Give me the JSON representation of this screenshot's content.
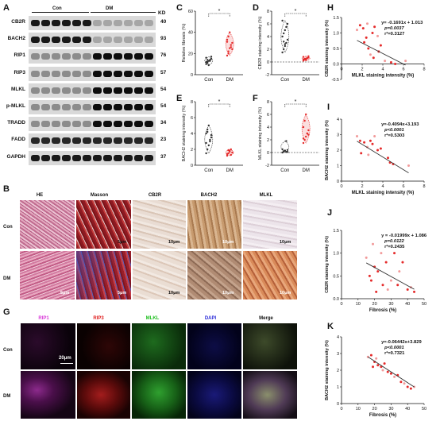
{
  "panels": {
    "A": "A",
    "B": "B",
    "C": "C",
    "D": "D",
    "E": "E",
    "F": "F",
    "G": "G",
    "H": "H",
    "I": "I",
    "J": "J",
    "K": "K"
  },
  "blot": {
    "group_con": "Con",
    "group_dm": "DM",
    "kd_header": "KD",
    "rows": [
      {
        "name": "CB2R",
        "kd": "40"
      },
      {
        "name": "BACH2",
        "kd": "93"
      },
      {
        "name": "RIP1",
        "kd": "76"
      },
      {
        "name": "RIP3",
        "kd": "57"
      },
      {
        "name": "MLKL",
        "kd": "54"
      },
      {
        "name": "p-MLKL",
        "kd": "54"
      },
      {
        "name": "TRADD",
        "kd": "34"
      },
      {
        "name": "FADD",
        "kd": "23"
      },
      {
        "name": "GAPDH",
        "kd": "37"
      }
    ]
  },
  "histology": {
    "columns": [
      "HE",
      "Masson",
      "CB2R",
      "BACH2",
      "MLKL"
    ],
    "rows": [
      "Con",
      "DM"
    ],
    "scalebars": [
      [
        "",
        "5μm",
        "10μm",
        "10μm",
        "10μm"
      ],
      [
        "5μm",
        "5μm",
        "10μm",
        "10μm",
        "10μm"
      ]
    ]
  },
  "fluorescence": {
    "columns": [
      "RIP1",
      "RIP3",
      "MLKL",
      "DAPI",
      "Merge"
    ],
    "column_colors": [
      "#d93bd9",
      "#e02020",
      "#22c022",
      "#2a2ad8",
      "#111111"
    ],
    "rows": [
      "Con",
      "DM"
    ],
    "scalebar": "20μm"
  },
  "violins": [
    {
      "id": "C",
      "ylabel": "Relative fibrosis (%)",
      "yticks": [
        "0",
        "20",
        "40",
        "60"
      ],
      "ylim": [
        0,
        60
      ],
      "star": "*",
      "categories": [
        "Con",
        "DM"
      ],
      "con": [
        10,
        12,
        13,
        14,
        15,
        16,
        11,
        9,
        13,
        17,
        12,
        14
      ],
      "dm": [
        18,
        22,
        25,
        28,
        30,
        33,
        36,
        40,
        26,
        24,
        31,
        20
      ]
    },
    {
      "id": "D",
      "ylabel": "CB2R staining intensity (%)",
      "yticks": [
        "-2",
        "0",
        "2",
        "4",
        "6",
        "8"
      ],
      "ylim": [
        -2,
        8
      ],
      "star": "*",
      "categories": [
        "Con",
        "DM"
      ],
      "con": [
        1.5,
        2,
        2.5,
        3,
        3.5,
        4,
        4.5,
        5,
        5.5,
        6,
        6.5,
        3.2,
        2.8
      ],
      "dm": [
        0.2,
        0.4,
        0.5,
        0.6,
        0.7,
        0.8,
        0.5,
        0.3,
        0.6,
        0.9,
        0.4
      ]
    },
    {
      "id": "E",
      "ylabel": "BACH2 staining intensity (%)",
      "yticks": [
        "0",
        "2",
        "4",
        "6",
        "8"
      ],
      "ylim": [
        0,
        8
      ],
      "star": "*",
      "categories": [
        "Con",
        "DM"
      ],
      "con": [
        1.5,
        2,
        2.5,
        3,
        3.5,
        4,
        4.5,
        5,
        3.2,
        3.8,
        2.8,
        4.2
      ],
      "dm": [
        1.2,
        1.5,
        1.8,
        2,
        1.6,
        1.4,
        1.9,
        1.7,
        1.3
      ]
    },
    {
      "id": "F",
      "ylabel": "MLKL staining intensity (%)",
      "yticks": [
        "-2",
        "0",
        "2",
        "4",
        "6",
        "8"
      ],
      "ylim": [
        -2,
        8
      ],
      "star": "*",
      "categories": [
        "Con",
        "DM"
      ],
      "con": [
        0,
        0.2,
        0.3,
        0.1,
        0.4,
        0.5,
        0.2,
        0.3,
        1.8,
        0.1
      ],
      "dm": [
        1.5,
        2,
        2.5,
        3,
        3.5,
        4,
        5,
        6,
        3,
        2.8,
        2.2
      ]
    }
  ],
  "scatters": [
    {
      "id": "H",
      "xlabel": "MLKL staining intensity (%)",
      "ylabel": "CB2R staining intensity (%)",
      "xticks": [
        "0",
        "2",
        "4",
        "6",
        "8"
      ],
      "yticks": [
        "-0.5",
        "0.0",
        "0.5",
        "1.0",
        "1.5"
      ],
      "xlim": [
        0,
        8
      ],
      "ylim": [
        -0.5,
        1.5
      ],
      "eq": "y= -0.1691x + 1.013",
      "p": "p=0.0037",
      "r2": "r²=0.3127",
      "points": [
        [
          1.5,
          1.1
        ],
        [
          1.8,
          1.25
        ],
        [
          2.1,
          1.15
        ],
        [
          2.5,
          1.3
        ],
        [
          3,
          1.0
        ],
        [
          3.2,
          1.2
        ],
        [
          3.5,
          0.9
        ],
        [
          2.2,
          0.7
        ],
        [
          2.6,
          0.5
        ],
        [
          2.8,
          0.3
        ],
        [
          3.1,
          0.2
        ],
        [
          3.6,
          0.4
        ],
        [
          4.2,
          0.1
        ],
        [
          4.8,
          0.05
        ],
        [
          5.2,
          0.0
        ],
        [
          6.2,
          0.1
        ],
        [
          2.4,
          0.85
        ],
        [
          3.8,
          0.6
        ]
      ],
      "line": [
        -0.1691,
        1.013
      ]
    },
    {
      "id": "I",
      "xlabel": "MLKL staining intensity (%)",
      "ylabel": "BACH2 staining intensity (%)",
      "xticks": [
        "0",
        "2",
        "4",
        "6",
        "8"
      ],
      "yticks": [
        "0",
        "1",
        "2",
        "3",
        "4"
      ],
      "xlim": [
        0,
        8
      ],
      "ylim": [
        0,
        4
      ],
      "eq": "y=-0.4094x+3.193",
      "p": "p<0.0001",
      "r2": "r²=0.5303",
      "points": [
        [
          1.5,
          2.9
        ],
        [
          1.8,
          2.6
        ],
        [
          2.2,
          2.5
        ],
        [
          2.5,
          2.2
        ],
        [
          2.8,
          2.6
        ],
        [
          3,
          2.4
        ],
        [
          3.2,
          2.9
        ],
        [
          3.5,
          2.0
        ],
        [
          1.9,
          1.8
        ],
        [
          2.6,
          1.7
        ],
        [
          4.5,
          1.5
        ],
        [
          4.7,
          1.2
        ],
        [
          6.5,
          1.0
        ],
        [
          5.0,
          1.1
        ],
        [
          3.8,
          2.1
        ]
      ],
      "line": [
        -0.4094,
        3.193
      ]
    },
    {
      "id": "J",
      "xlabel": "Fibrosis (%)",
      "ylabel": "CB2R staining intensity (%)",
      "xticks": [
        "0",
        "10",
        "20",
        "30",
        "40",
        "50"
      ],
      "yticks": [
        "0.0",
        "0.5",
        "1.0",
        "1.5"
      ],
      "xlim": [
        0,
        50
      ],
      "ylim": [
        0,
        1.5
      ],
      "eq": "y = -0.01999x + 1.086",
      "p": "p=0.0122",
      "r2": "r²=0.2435",
      "points": [
        [
          15,
          0.9
        ],
        [
          17,
          0.5
        ],
        [
          18,
          0.4
        ],
        [
          19,
          1.2
        ],
        [
          20,
          0.7
        ],
        [
          22,
          0.6
        ],
        [
          24,
          1.0
        ],
        [
          25,
          0.3
        ],
        [
          27,
          0.8
        ],
        [
          30,
          0.4
        ],
        [
          32,
          1.0
        ],
        [
          34,
          0.3
        ],
        [
          35,
          0.6
        ],
        [
          37,
          0.8
        ],
        [
          40,
          0.2
        ],
        [
          42,
          0.25
        ],
        [
          44,
          0.15
        ],
        [
          21,
          0.15
        ],
        [
          28,
          0.2
        ]
      ],
      "line": [
        -0.01999,
        1.086
      ]
    },
    {
      "id": "K",
      "xlabel": "Fibrosis (%)",
      "ylabel": "BACH2 staining intensity (%)",
      "xticks": [
        "0",
        "10",
        "20",
        "30",
        "40",
        "50"
      ],
      "yticks": [
        "0",
        "1",
        "2",
        "3",
        "4"
      ],
      "xlim": [
        0,
        50
      ],
      "ylim": [
        0,
        4
      ],
      "eq": "y=-0.06442x+3.829",
      "p": "p<0.0001",
      "r2": "r²=0.7321",
      "points": [
        [
          16,
          2.8
        ],
        [
          18,
          2.9
        ],
        [
          20,
          2.5
        ],
        [
          21,
          2.7
        ],
        [
          22,
          2.3
        ],
        [
          24,
          2.2
        ],
        [
          25,
          2.0
        ],
        [
          28,
          1.9
        ],
        [
          30,
          1.8
        ],
        [
          32,
          1.6
        ],
        [
          34,
          1.7
        ],
        [
          36,
          1.3
        ],
        [
          38,
          1.2
        ],
        [
          40,
          1.0
        ],
        [
          42,
          0.9
        ],
        [
          44,
          1.0
        ],
        [
          19,
          2.2
        ],
        [
          26,
          2.4
        ]
      ],
      "line": [
        -0.06442,
        3.829
      ]
    }
  ],
  "colors": {
    "con": "#111111",
    "dm": "#e52b2b",
    "violin_dm": "#f4a0a0"
  }
}
